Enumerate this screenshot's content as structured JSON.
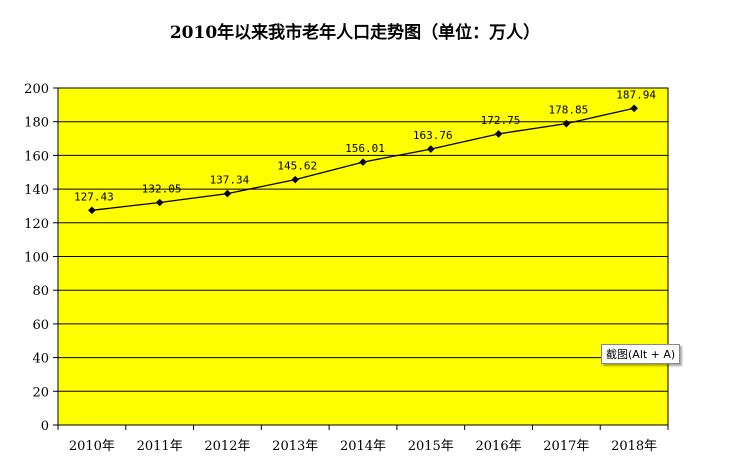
{
  "chart_data": {
    "type": "line",
    "title": "2010年以来我市老年人口走势图（单位：万人）",
    "categories": [
      "2010年",
      "2011年",
      "2012年",
      "2013年",
      "2014年",
      "2015年",
      "2016年",
      "2017年",
      "2018年"
    ],
    "series": [
      {
        "values": [
          127.43,
          132.05,
          137.34,
          145.62,
          156.01,
          163.76,
          172.75,
          178.85,
          187.94
        ],
        "labels": [
          "127.43",
          "132.05",
          "137.34",
          "145.62",
          "156.01",
          "163.76",
          "172.75",
          "178.85",
          "187.94"
        ]
      }
    ],
    "ylim": [
      0,
      200
    ],
    "yticks": [
      0,
      20,
      40,
      60,
      80,
      100,
      120,
      140,
      160,
      180,
      200
    ],
    "grid": true,
    "legend": "none",
    "colors": {
      "plot_background": "#ffff00",
      "line": "#000000",
      "marker": "#000000",
      "gridline": "#000000"
    }
  },
  "tooltip": {
    "text": "截图(Alt + A)"
  }
}
